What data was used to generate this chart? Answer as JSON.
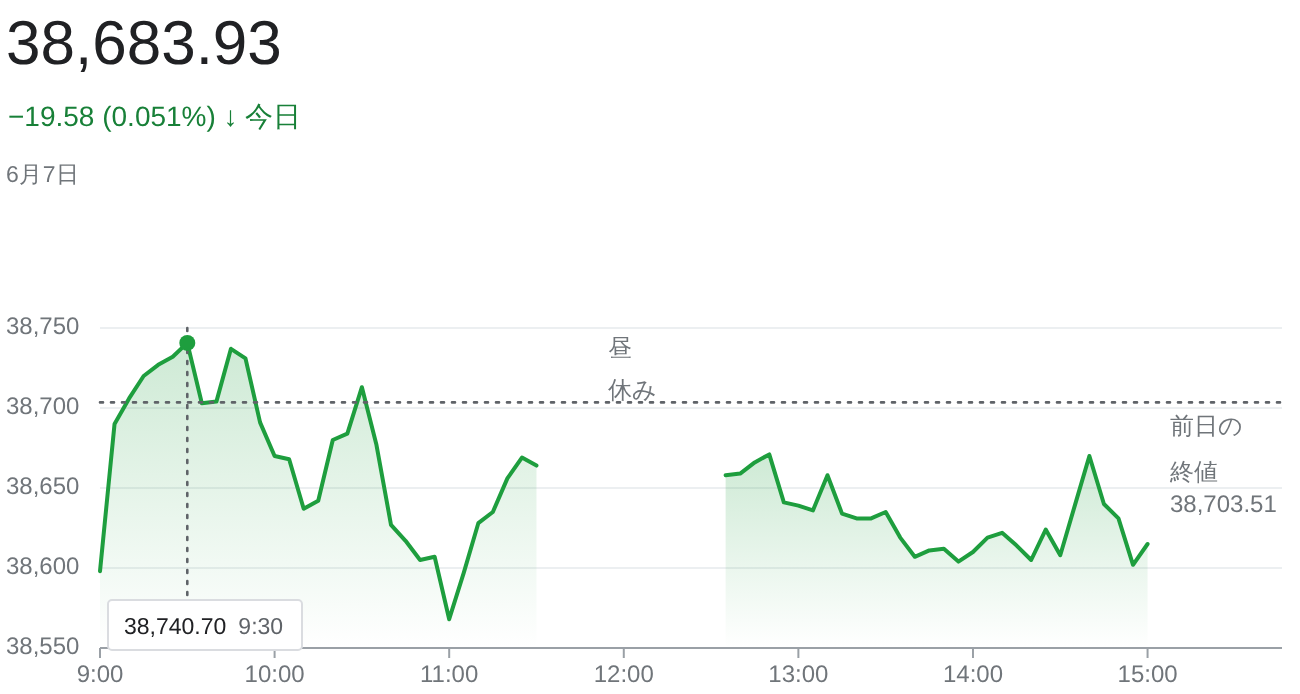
{
  "chart_data": {
    "type": "area",
    "title": "38,683.93",
    "subtitle": "−19.58 (0.051%) ↓ 今日",
    "x": [
      9,
      9.0833,
      9.1667,
      9.25,
      9.3333,
      9.4167,
      9.5,
      9.5833,
      9.6667,
      9.75,
      9.8333,
      9.9167,
      10,
      10.0833,
      10.1667,
      10.25,
      10.3333,
      10.4167,
      10.5,
      10.5833,
      10.6667,
      10.75,
      10.8333,
      10.9167,
      11,
      11.0833,
      11.1667,
      11.25,
      11.3333,
      11.4167,
      11.5,
      12.5833,
      12.6667,
      12.75,
      12.8333,
      12.9167,
      13,
      13.0833,
      13.1667,
      13.25,
      13.3333,
      13.4167,
      13.5,
      13.5833,
      13.6667,
      13.75,
      13.8333,
      13.9167,
      14,
      14.0833,
      14.1667,
      14.25,
      14.3333,
      14.4167,
      14.5,
      14.5833,
      14.6667,
      14.75,
      14.8333,
      14.9167,
      15
    ],
    "series": [
      {
        "color": "#1e9e3e",
        "values": [
          38598,
          38690,
          38706,
          38720,
          38727,
          38732,
          38740.7,
          38703,
          38704,
          38737,
          38731,
          38691,
          38670,
          38668,
          38637,
          38642,
          38680,
          38684,
          38713,
          38677,
          38627,
          38617,
          38605,
          38607,
          38568,
          38597,
          38628,
          38635,
          38656,
          38669,
          38664,
          38658,
          38659,
          38666,
          38671,
          38641,
          38639,
          38636,
          38658,
          38634,
          38631,
          38631,
          38635,
          38619,
          38607,
          38611,
          38612,
          38604,
          38610,
          38619,
          38622,
          38614,
          38605,
          38624,
          38608,
          38639,
          38670,
          38640,
          38631,
          38602,
          38615
        ]
      }
    ],
    "xlim": [
      9,
      15.77
    ],
    "ylim": [
      38550,
      38750
    ],
    "xticks": [
      {
        "value": 9,
        "label": "9:00"
      },
      {
        "value": 10,
        "label": "10:00"
      },
      {
        "value": 11,
        "label": "11:00"
      },
      {
        "value": 12,
        "label": "12:00"
      },
      {
        "value": 13,
        "label": "13:00"
      },
      {
        "value": 14,
        "label": "14:00"
      },
      {
        "value": 15,
        "label": "15:00"
      }
    ],
    "yticks": [
      {
        "value": 38550,
        "label": "38,550"
      },
      {
        "value": 38600,
        "label": "38,600"
      },
      {
        "value": 38650,
        "label": "38,650"
      },
      {
        "value": 38700,
        "label": "38,700"
      },
      {
        "value": 38750,
        "label": "38,750"
      }
    ],
    "grid": "y",
    "ref_lines": [
      {
        "axis": "y",
        "value": 38703.51,
        "label": "前日の終値",
        "line_style": "dotted"
      },
      {
        "axis": "x",
        "value": 9.5,
        "line_style": "dotted"
      }
    ],
    "annotations": [
      "6月7日",
      "38,740.70 9:30",
      "昼休み",
      "38,703.51"
    ]
  }
}
